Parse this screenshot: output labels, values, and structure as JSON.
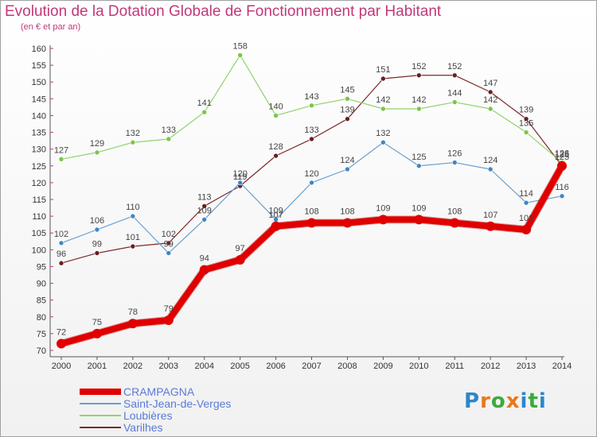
{
  "header": {
    "title": "Evolution de la Dotation Globale de Fonctionnement par Habitant",
    "subtitle": "(en € et par an)"
  },
  "logo": {
    "text": "Proxiti",
    "letters": [
      "P",
      "r",
      "o",
      "x",
      "i",
      "t",
      "i"
    ],
    "colors": [
      "#2e86c8",
      "#e8781a",
      "#3caa3c",
      "#e8781a",
      "#2e86c8",
      "#3caa3c",
      "#2e86c8"
    ]
  },
  "chart_data": {
    "type": "line",
    "title": "Evolution de la Dotation Globale de Fonctionnement par Habitant",
    "subtitle": "(en € et par an)",
    "xlabel": "",
    "ylabel": "",
    "categories": [
      "2000",
      "2001",
      "2002",
      "2003",
      "2004",
      "2005",
      "2006",
      "2007",
      "2008",
      "2009",
      "2010",
      "2011",
      "2012",
      "2013",
      "2014"
    ],
    "ylim": [
      70,
      160
    ],
    "yticks": [
      70,
      75,
      80,
      85,
      90,
      95,
      100,
      105,
      110,
      115,
      120,
      125,
      130,
      135,
      140,
      145,
      150,
      155,
      160
    ],
    "grid": false,
    "legend_position": "bottom-left",
    "series": [
      {
        "name": "Varilhes",
        "color": "#7a2a2a",
        "marker": "#6a1e1e",
        "width": 1.2,
        "radius": 3,
        "values": [
          96,
          99,
          101,
          102,
          113,
          119,
          128,
          133,
          139,
          151,
          152,
          152,
          147,
          139,
          125
        ]
      },
      {
        "name": "Loubières",
        "color": "#8fd46a",
        "marker": "#7cc44a",
        "width": 1.2,
        "radius": 3,
        "values": [
          127,
          129,
          132,
          133,
          141,
          158,
          140,
          143,
          145,
          142,
          142,
          144,
          142,
          135,
          126
        ]
      },
      {
        "name": "Saint-Jean-de-Verges",
        "color": "#6a9fd0",
        "marker": "#3f86c6",
        "width": 1.2,
        "radius": 3,
        "values": [
          102,
          106,
          110,
          99,
          109,
          120,
          109,
          120,
          124,
          132,
          125,
          126,
          124,
          114,
          116
        ]
      },
      {
        "name": "CRAMPAGNA",
        "color": "#e00000",
        "marker": "#e00000",
        "width": 8,
        "radius": 6,
        "values": [
          72,
          75,
          78,
          79,
          94,
          97,
          107,
          108,
          108,
          109,
          109,
          108,
          107,
          106,
          125
        ]
      }
    ],
    "legend_order": [
      "CRAMPAGNA",
      "Saint-Jean-de-Verges",
      "Loubières",
      "Varilhes"
    ],
    "data_labels": [
      {
        "series": "Varilhes",
        "values": [
          "96",
          "99",
          "101",
          "102",
          "113",
          "119",
          "128",
          "133",
          "139",
          "151",
          "152",
          "152",
          "147",
          "139",
          "125"
        ]
      },
      {
        "series": "Loubières",
        "values": [
          "127",
          "129",
          "132",
          "133",
          "141",
          "158",
          "140",
          "143",
          "145",
          "142",
          "142",
          "144",
          "142",
          "135",
          "126"
        ]
      },
      {
        "series": "Saint-Jean-de-Verges",
        "values": [
          "102",
          "106",
          "110",
          "99",
          "109",
          "120",
          "109",
          "120",
          "124",
          "132",
          "125",
          "126",
          "124",
          "114",
          "116"
        ]
      },
      {
        "series": "CRAMPAGNA",
        "values": [
          "72",
          "75",
          "78",
          "79",
          "94",
          "97",
          "107",
          "108",
          "108",
          "109",
          "109",
          "108",
          "107",
          "106",
          "125"
        ]
      }
    ]
  }
}
